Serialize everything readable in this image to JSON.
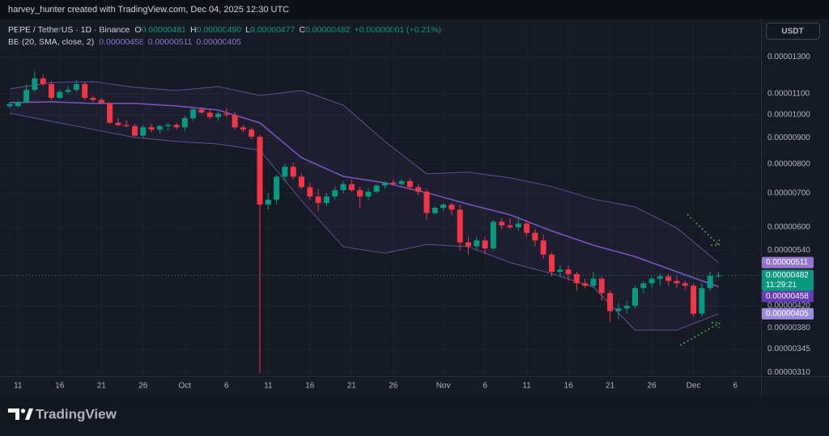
{
  "header": {
    "attribution": "harvey_hunter created with TradingView.com, Dec 04, 2025 12:30 UTC"
  },
  "legend": {
    "symbol": "PEPE / TetherUS · 1D · Binance",
    "ohlc": [
      {
        "key": "O",
        "value": "0.00000481"
      },
      {
        "key": "H",
        "value": "0.00000490"
      },
      {
        "key": "L",
        "value": "0.00000477"
      },
      {
        "key": "C",
        "value": "0.00000482"
      }
    ],
    "change": "+0.00000001 (+0.21%)",
    "indicator": "BB (20, SMA, close, 2)",
    "indicator_values": [
      "0.00000458",
      "0.00000511",
      "0.00000405"
    ]
  },
  "currency_button": "USDT",
  "brand": "TradingView",
  "chart_data": {
    "type": "candlestick",
    "log_scale": true,
    "grid": true,
    "up_color": "#089981",
    "down_color": "#f23645",
    "x": [
      "2025-09-10",
      "2025-09-11",
      "2025-09-12",
      "2025-09-13",
      "2025-09-14",
      "2025-09-15",
      "2025-09-16",
      "2025-09-17",
      "2025-09-18",
      "2025-09-19",
      "2025-09-20",
      "2025-09-21",
      "2025-09-22",
      "2025-09-23",
      "2025-09-24",
      "2025-09-25",
      "2025-09-26",
      "2025-09-27",
      "2025-09-28",
      "2025-09-29",
      "2025-09-30",
      "2025-10-01",
      "2025-10-02",
      "2025-10-03",
      "2025-10-04",
      "2025-10-05",
      "2025-10-06",
      "2025-10-07",
      "2025-10-08",
      "2025-10-09",
      "2025-10-10",
      "2025-10-11",
      "2025-10-12",
      "2025-10-13",
      "2025-10-14",
      "2025-10-15",
      "2025-10-16",
      "2025-10-17",
      "2025-10-18",
      "2025-10-19",
      "2025-10-20",
      "2025-10-21",
      "2025-10-22",
      "2025-10-23",
      "2025-10-24",
      "2025-10-25",
      "2025-10-26",
      "2025-10-27",
      "2025-10-28",
      "2025-10-29",
      "2025-10-30",
      "2025-10-31",
      "2025-11-01",
      "2025-11-02",
      "2025-11-03",
      "2025-11-04",
      "2025-11-05",
      "2025-11-06",
      "2025-11-07",
      "2025-11-08",
      "2025-11-09",
      "2025-11-10",
      "2025-11-11",
      "2025-11-12",
      "2025-11-13",
      "2025-11-14",
      "2025-11-15",
      "2025-11-16",
      "2025-11-17",
      "2025-11-18",
      "2025-11-19",
      "2025-11-20",
      "2025-11-21",
      "2025-11-22",
      "2025-11-23",
      "2025-11-24",
      "2025-11-25",
      "2025-11-26",
      "2025-11-27",
      "2025-11-28",
      "2025-11-29",
      "2025-11-30",
      "2025-12-01",
      "2025-12-02",
      "2025-12-03",
      "2025-12-04"
    ],
    "open": [
      1.04e-05,
      1.04e-05,
      1.06e-05,
      1.12e-05,
      1.18e-05,
      1.15e-05,
      1.08e-05,
      1.11e-05,
      1.12e-05,
      1.15e-05,
      1.08e-05,
      1.07e-05,
      1.055e-05,
      9.65e-06,
      9.55e-06,
      9.5e-06,
      9.1e-06,
      9.45e-06,
      9.35e-06,
      9.5e-06,
      9.55e-06,
      9.45e-06,
      9.85e-06,
      1.025e-05,
      1.01e-05,
      9.9e-06,
      1.005e-05,
      1e-05,
      9.45e-06,
      9.35e-06,
      9.05e-06,
      6.65e-06,
      6.8e-06,
      7.55e-06,
      7.9e-06,
      7.55e-06,
      7.2e-06,
      6.9e-06,
      6.7e-06,
      6.9e-06,
      7.1e-06,
      7.3e-06,
      7.1e-06,
      6.9e-06,
      7.05e-06,
      7.25e-06,
      7.35e-06,
      7.3e-06,
      7.4e-06,
      7.2e-06,
      7.05e-06,
      6.4e-06,
      6.55e-06,
      6.65e-06,
      6.5e-06,
      5.6e-06,
      5.5e-06,
      5.65e-06,
      5.45e-06,
      6.15e-06,
      6.05e-06,
      6e-06,
      6.1e-06,
      5.85e-06,
      5.65e-06,
      5.3e-06,
      4.9e-06,
      4.95e-06,
      4.85e-06,
      4.65e-06,
      4.6e-06,
      4.75e-06,
      4.45e-06,
      4.1e-06,
      4.15e-06,
      4.2e-06,
      4.55e-06,
      4.65e-06,
      4.75e-06,
      4.8e-06,
      4.7e-06,
      4.65e-06,
      4.6e-06,
      4.05e-06,
      4.55e-06,
      4.81e-06
    ],
    "high": [
      1.06e-05,
      1.065e-05,
      1.15e-05,
      1.22e-05,
      1.2e-05,
      1.165e-05,
      1.12e-05,
      1.14e-05,
      1.17e-05,
      1.16e-05,
      1.09e-05,
      1.08e-05,
      1.06e-05,
      9.85e-06,
      9.75e-06,
      9.6e-06,
      9.55e-06,
      9.6e-06,
      9.55e-06,
      9.65e-06,
      9.65e-06,
      9.95e-06,
      1.03e-05,
      1.035e-05,
      1.025e-05,
      1.015e-05,
      1.03e-05,
      1.015e-05,
      9.55e-06,
      9.45e-06,
      9.15e-06,
      7e-06,
      7.6e-06,
      8e-06,
      8.05e-06,
      7.65e-06,
      7.35e-06,
      7.15e-06,
      7e-06,
      7.2e-06,
      7.4e-06,
      7.45e-06,
      7.2e-06,
      7.15e-06,
      7.3e-06,
      7.4e-06,
      7.45e-06,
      7.45e-06,
      7.5e-06,
      7.3e-06,
      7.15e-06,
      6.6e-06,
      6.7e-06,
      6.7e-06,
      6.65e-06,
      5.75e-06,
      5.75e-06,
      5.75e-06,
      6.2e-06,
      6.25e-06,
      6.25e-06,
      6.3e-06,
      6.2e-06,
      5.95e-06,
      5.8e-06,
      5.35e-06,
      5.05e-06,
      5.05e-06,
      4.9e-06,
      4.75e-06,
      4.9e-06,
      4.8e-06,
      4.5e-06,
      4.25e-06,
      4.3e-06,
      4.6e-06,
      4.7e-06,
      4.8e-06,
      4.85e-06,
      4.85e-06,
      4.8e-06,
      4.7e-06,
      4.65e-06,
      4.65e-06,
      4.9e-06,
      4.9e-06
    ],
    "low": [
      1.03e-05,
      1.035e-05,
      1.055e-05,
      1.11e-05,
      1.14e-05,
      1.07e-05,
      1.075e-05,
      1.1e-05,
      1.11e-05,
      1.07e-05,
      1.06e-05,
      1.05e-05,
      9.6e-06,
      9.5e-06,
      9.45e-06,
      9.05e-06,
      9e-06,
      9.25e-06,
      9.2e-06,
      9.3e-06,
      9.35e-06,
      9.3e-06,
      9.75e-06,
      1.005e-05,
      9.8e-06,
      9.75e-06,
      9.9e-06,
      9.35e-06,
      9.25e-06,
      8.95e-06,
      3.1e-06,
      6.5e-06,
      6.65e-06,
      7.4e-06,
      7.45e-06,
      7.15e-06,
      6.8e-06,
      6.45e-06,
      6.6e-06,
      6.8e-06,
      7e-06,
      7.05e-06,
      6.55e-06,
      6.8e-06,
      7e-06,
      7.15e-06,
      7.25e-06,
      7.25e-06,
      7.1e-06,
      6.95e-06,
      6.2e-06,
      6.35e-06,
      6.45e-06,
      6.35e-06,
      5.4e-06,
      5.3e-06,
      5.4e-06,
      5.3e-06,
      5.4e-06,
      5.95e-06,
      5.95e-06,
      5.9e-06,
      5.75e-06,
      5.5e-06,
      5.2e-06,
      4.8e-06,
      4.8e-06,
      4.7e-06,
      4.5e-06,
      4.55e-06,
      4.55e-06,
      4.3e-06,
      3.9e-06,
      3.95e-06,
      4.05e-06,
      4.15e-06,
      4.45e-06,
      4.55e-06,
      4.6e-06,
      4.6e-06,
      4.55e-06,
      4.5e-06,
      4e-06,
      4e-06,
      4.5e-06,
      4.77e-06
    ],
    "close": [
      1.05e-05,
      1.06e-05,
      1.12e-05,
      1.18e-05,
      1.15e-05,
      1.08e-05,
      1.11e-05,
      1.12e-05,
      1.15e-05,
      1.08e-05,
      1.07e-05,
      1.055e-05,
      9.65e-06,
      9.55e-06,
      9.5e-06,
      9.1e-06,
      9.45e-06,
      9.35e-06,
      9.5e-06,
      9.55e-06,
      9.45e-06,
      9.85e-06,
      1.025e-05,
      1.01e-05,
      9.9e-06,
      1.005e-05,
      1e-05,
      9.45e-06,
      9.35e-06,
      9.05e-06,
      6.65e-06,
      6.8e-06,
      7.55e-06,
      7.9e-06,
      7.55e-06,
      7.2e-06,
      6.9e-06,
      6.7e-06,
      6.9e-06,
      7.1e-06,
      7.3e-06,
      7.1e-06,
      6.9e-06,
      7.05e-06,
      7.25e-06,
      7.35e-06,
      7.3e-06,
      7.4e-06,
      7.2e-06,
      7.05e-06,
      6.4e-06,
      6.55e-06,
      6.65e-06,
      6.5e-06,
      5.6e-06,
      5.5e-06,
      5.65e-06,
      5.45e-06,
      6.15e-06,
      6.05e-06,
      6e-06,
      6.1e-06,
      5.85e-06,
      5.65e-06,
      5.3e-06,
      4.9e-06,
      4.95e-06,
      4.85e-06,
      4.65e-06,
      4.6e-06,
      4.75e-06,
      4.45e-06,
      4.1e-06,
      4.15e-06,
      4.2e-06,
      4.55e-06,
      4.65e-06,
      4.75e-06,
      4.8e-06,
      4.7e-06,
      4.65e-06,
      4.6e-06,
      4.05e-06,
      4.55e-06,
      4.81e-06,
      4.82e-06
    ],
    "bollinger": {
      "x": [
        "2025-09-10",
        "2025-09-15",
        "2025-09-20",
        "2025-09-25",
        "2025-09-30",
        "2025-10-05",
        "2025-10-10",
        "2025-10-15",
        "2025-10-20",
        "2025-10-25",
        "2025-10-30",
        "2025-11-04",
        "2025-11-09",
        "2025-11-14",
        "2025-11-19",
        "2025-11-24",
        "2025-11-29",
        "2025-12-04"
      ],
      "upper": [
        1.125e-05,
        1.158e-05,
        1.163e-05,
        1.133e-05,
        1.117e-05,
        1.137e-05,
        1.092e-05,
        1.117e-05,
        1.045e-05,
        8.86e-06,
        7.65e-06,
        7.71e-06,
        7.51e-06,
        7.22e-06,
        6.82e-06,
        6.58e-06,
        5.98e-06,
        5.11e-06
      ],
      "basis": [
        1.057e-05,
        1.061e-05,
        1.053e-05,
        1.053e-05,
        1.041e-05,
        1.022e-05,
        9.64e-06,
        8.23e-06,
        7.56e-06,
        7.34e-06,
        7.02e-06,
        6.66e-06,
        6.35e-06,
        5.9e-06,
        5.53e-06,
        5.25e-06,
        4.9e-06,
        4.58e-06
      ],
      "lower": [
        1.007e-05,
        9.71e-06,
        9.36e-06,
        9.02e-06,
        8.86e-06,
        8.76e-06,
        8.51e-06,
        6.77e-06,
        5.49e-06,
        5.33e-06,
        5.55e-06,
        5.49e-06,
        5.11e-06,
        4.86e-06,
        4.57e-06,
        3.76e-06,
        3.76e-06,
        4.05e-06
      ],
      "basis_color": "#7e57c2",
      "band_color": "#5e5490"
    },
    "ylim": [
      3.05e-06,
      1.537e-05
    ],
    "yticks": [
      {
        "value": 1.3e-05,
        "label": "0.00001300"
      },
      {
        "value": 1.1e-05,
        "label": "0.00001100"
      },
      {
        "value": 1e-05,
        "label": "0.00001000"
      },
      {
        "value": 9e-06,
        "label": "0.00000900"
      },
      {
        "value": 8e-06,
        "label": "0.00000800"
      },
      {
        "value": 7e-06,
        "label": "0.00000700"
      },
      {
        "value": 6e-06,
        "label": "0.00000600"
      },
      {
        "value": 5.4e-06,
        "label": "0.00000540"
      },
      {
        "value": 4.2e-06,
        "label": "0.00000420"
      },
      {
        "value": 3.8e-06,
        "label": "0.00000380"
      },
      {
        "value": 3.45e-06,
        "label": "0.00000345"
      },
      {
        "value": 3.1e-06,
        "label": "0.00000310"
      }
    ],
    "xticks": [
      {
        "value": "2025-09-11",
        "label": "11"
      },
      {
        "value": "2025-09-16",
        "label": "16"
      },
      {
        "value": "2025-09-21",
        "label": "21"
      },
      {
        "value": "2025-09-26",
        "label": "26"
      },
      {
        "value": "2025-10-01",
        "label": "Oct"
      },
      {
        "value": "2025-10-06",
        "label": "6"
      },
      {
        "value": "2025-10-11",
        "label": "11"
      },
      {
        "value": "2025-10-16",
        "label": "16"
      },
      {
        "value": "2025-10-21",
        "label": "21"
      },
      {
        "value": "2025-10-26",
        "label": "26"
      },
      {
        "value": "2025-11-01",
        "label": "Nov"
      },
      {
        "value": "2025-11-06",
        "label": "6"
      },
      {
        "value": "2025-11-11",
        "label": "11"
      },
      {
        "value": "2025-11-16",
        "label": "16"
      },
      {
        "value": "2025-11-21",
        "label": "21"
      },
      {
        "value": "2025-11-26",
        "label": "26"
      },
      {
        "value": "2025-12-01",
        "label": "Dec"
      },
      {
        "value": "2025-12-06",
        "label": "6"
      }
    ],
    "price_labels": [
      {
        "value": 5.11e-06,
        "label": "0.00000511",
        "color": "#9575cd"
      },
      {
        "value": 4.82e-06,
        "label": "0.00000482",
        "countdown": "11:29:21",
        "color": "#089981"
      },
      {
        "value": 4.58e-06,
        "label": "0.00000458",
        "color": "#673ab7"
      },
      {
        "value": 4.05e-06,
        "label": "0.00000405",
        "color": "#9c8ade"
      }
    ]
  }
}
